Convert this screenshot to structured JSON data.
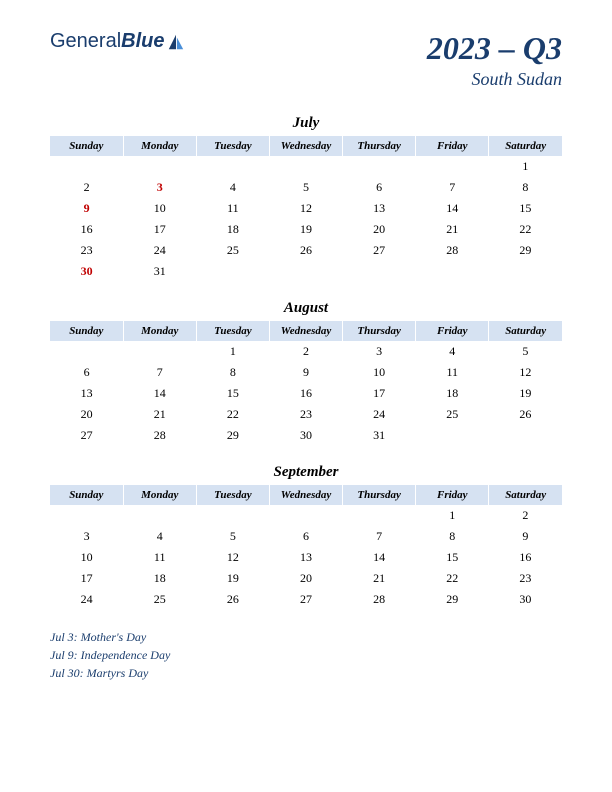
{
  "logo": {
    "text1": "General",
    "text2": "Blue"
  },
  "title": {
    "main": "2023 – Q3",
    "sub": "South Sudan"
  },
  "dayHeaders": [
    "Sunday",
    "Monday",
    "Tuesday",
    "Wednesday",
    "Thursday",
    "Friday",
    "Saturday"
  ],
  "months": [
    {
      "name": "July",
      "weeks": [
        [
          "",
          "",
          "",
          "",
          "",
          "",
          "1"
        ],
        [
          "2",
          "3",
          "4",
          "5",
          "6",
          "7",
          "8"
        ],
        [
          "9",
          "10",
          "11",
          "12",
          "13",
          "14",
          "15"
        ],
        [
          "16",
          "17",
          "18",
          "19",
          "20",
          "21",
          "22"
        ],
        [
          "23",
          "24",
          "25",
          "26",
          "27",
          "28",
          "29"
        ],
        [
          "30",
          "31",
          "",
          "",
          "",
          "",
          ""
        ]
      ],
      "holidays": [
        "3",
        "9",
        "30"
      ]
    },
    {
      "name": "August",
      "weeks": [
        [
          "",
          "",
          "1",
          "2",
          "3",
          "4",
          "5"
        ],
        [
          "6",
          "7",
          "8",
          "9",
          "10",
          "11",
          "12"
        ],
        [
          "13",
          "14",
          "15",
          "16",
          "17",
          "18",
          "19"
        ],
        [
          "20",
          "21",
          "22",
          "23",
          "24",
          "25",
          "26"
        ],
        [
          "27",
          "28",
          "29",
          "30",
          "31",
          "",
          ""
        ]
      ],
      "holidays": []
    },
    {
      "name": "September",
      "weeks": [
        [
          "",
          "",
          "",
          "",
          "",
          "1",
          "2"
        ],
        [
          "3",
          "4",
          "5",
          "6",
          "7",
          "8",
          "9"
        ],
        [
          "10",
          "11",
          "12",
          "13",
          "14",
          "15",
          "16"
        ],
        [
          "17",
          "18",
          "19",
          "20",
          "21",
          "22",
          "23"
        ],
        [
          "24",
          "25",
          "26",
          "27",
          "28",
          "29",
          "30"
        ]
      ],
      "holidays": []
    }
  ],
  "holidayList": [
    "Jul 3: Mother's Day",
    "Jul 9: Independence Day",
    "Jul 30: Martyrs Day"
  ],
  "colors": {
    "headerBg": "#d6e2f2",
    "brandText": "#1a3d6d",
    "holidayText": "#c00000"
  }
}
